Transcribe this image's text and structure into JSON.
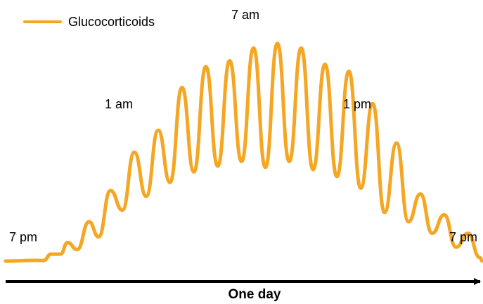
{
  "chart_data": {
    "type": "line",
    "title": "",
    "xlabel": "One day",
    "ylabel": "",
    "grid": false,
    "legend": {
      "position": "top-left",
      "entries": [
        "Glucocorticoids"
      ]
    },
    "series": [
      {
        "name": "Glucocorticoids",
        "color": "#f5a623",
        "peaks": [
          {
            "x": 6.5,
            "y": 0.3
          },
          {
            "x": 9.5,
            "y": 3
          },
          {
            "x": 13,
            "y": 8
          },
          {
            "x": 17.5,
            "y": 17
          },
          {
            "x": 22,
            "y": 30.5
          },
          {
            "x": 27,
            "y": 47
          },
          {
            "x": 32,
            "y": 56.5
          },
          {
            "x": 37,
            "y": 75
          },
          {
            "x": 42,
            "y": 84
          },
          {
            "x": 47,
            "y": 86.5
          },
          {
            "x": 52,
            "y": 92
          },
          {
            "x": 57,
            "y": 94
          },
          {
            "x": 62,
            "y": 92
          },
          {
            "x": 67,
            "y": 85
          },
          {
            "x": 72,
            "y": 82
          },
          {
            "x": 77,
            "y": 68
          },
          {
            "x": 82,
            "y": 51
          },
          {
            "x": 87,
            "y": 29
          },
          {
            "x": 92,
            "y": 20
          },
          {
            "x": 97,
            "y": 12
          }
        ],
        "troughs": [
          {
            "x": 8,
            "y": 0.2
          },
          {
            "x": 11.5,
            "y": 3
          },
          {
            "x": 15,
            "y": 5
          },
          {
            "x": 19.5,
            "y": 10.5
          },
          {
            "x": 24.5,
            "y": 22
          },
          {
            "x": 29.5,
            "y": 28
          },
          {
            "x": 34.5,
            "y": 34
          },
          {
            "x": 39.5,
            "y": 38.5
          },
          {
            "x": 44.5,
            "y": 41
          },
          {
            "x": 49.5,
            "y": 43
          },
          {
            "x": 54.5,
            "y": 40.5
          },
          {
            "x": 59.5,
            "y": 43
          },
          {
            "x": 64.5,
            "y": 39.5
          },
          {
            "x": 69.5,
            "y": 36.5
          },
          {
            "x": 74.5,
            "y": 31.5
          },
          {
            "x": 79.5,
            "y": 21
          },
          {
            "x": 84.5,
            "y": 17
          },
          {
            "x": 89.5,
            "y": 12
          },
          {
            "x": 94.5,
            "y": 6
          },
          {
            "x": 99.5,
            "y": 1.5
          }
        ],
        "start": {
          "x": 0,
          "y": 0
        },
        "end": {
          "x": 100,
          "y": 0
        }
      }
    ],
    "annotations": [
      {
        "text": "7 pm",
        "x": 6.5,
        "y": 3
      },
      {
        "text": "1 am",
        "x": 27,
        "y": 60
      },
      {
        "text": "7 am",
        "x": 52,
        "y": 97
      },
      {
        "text": "1 pm",
        "x": 76,
        "y": 60
      },
      {
        "text": "7 pm",
        "x": 95,
        "y": 3
      }
    ],
    "xlim": [
      0,
      100
    ],
    "ylim": [
      0,
      100
    ]
  }
}
